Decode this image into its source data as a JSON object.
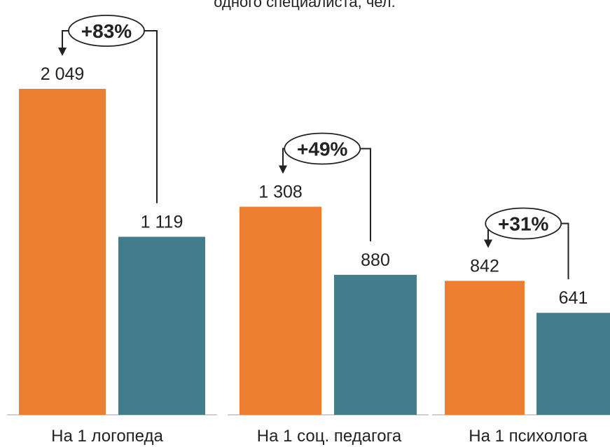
{
  "chart_data": {
    "type": "bar",
    "title": "одного специалиста, чел.",
    "categories": [
      "На 1 логопеда",
      "На 1 соц. педагога",
      "На 1 психолога"
    ],
    "series": [
      {
        "values": [
          2049,
          1308,
          842
        ],
        "labels": [
          "2 049",
          "1 308",
          "842"
        ],
        "color": "#ED7D31"
      },
      {
        "values": [
          1119,
          880,
          641
        ],
        "labels": [
          "1 119",
          "880",
          "641"
        ],
        "color": "#437C8A"
      }
    ],
    "growth": [
      "+83%",
      "+49%",
      "+31%"
    ],
    "ylim": [
      0,
      2500
    ],
    "grid": false,
    "legend": "none"
  }
}
